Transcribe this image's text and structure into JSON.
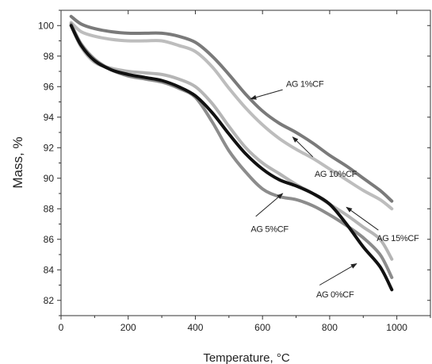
{
  "chart_data": {
    "type": "line",
    "title": "",
    "xlabel": "Temperature, °C",
    "ylabel": "Mass, %",
    "xlim": [
      0,
      1100
    ],
    "ylim": [
      81,
      101
    ],
    "xticks": [
      "0",
      "200",
      "400",
      "600",
      "800",
      "1000"
    ],
    "yticks": [
      "82",
      "84",
      "86",
      "88",
      "90",
      "92",
      "94",
      "96",
      "98",
      "100"
    ],
    "grid": false,
    "legend": "none",
    "series": [
      {
        "name": "AG 1%CF",
        "color": "#7a7a7a",
        "x": [
          30,
          60,
          100,
          150,
          200,
          250,
          300,
          350,
          400,
          450,
          500,
          550,
          600,
          650,
          700,
          750,
          800,
          850,
          900,
          950,
          985
        ],
        "y": [
          100.6,
          100.1,
          99.8,
          99.6,
          99.5,
          99.5,
          99.5,
          99.3,
          98.9,
          98.0,
          96.8,
          95.5,
          94.4,
          93.6,
          93.0,
          92.3,
          91.5,
          90.8,
          90.0,
          89.2,
          88.5
        ]
      },
      {
        "name": "AG 10%CF",
        "color": "#bdbdbd",
        "x": [
          30,
          60,
          100,
          150,
          200,
          250,
          300,
          350,
          400,
          450,
          500,
          550,
          600,
          650,
          700,
          750,
          800,
          850,
          900,
          950,
          985
        ],
        "y": [
          100.2,
          99.6,
          99.3,
          99.1,
          99.0,
          99.0,
          99.0,
          98.7,
          98.3,
          97.3,
          95.9,
          94.6,
          93.5,
          92.6,
          91.9,
          91.3,
          90.6,
          89.9,
          89.2,
          88.6,
          88.0
        ]
      },
      {
        "name": "AG 15%CF",
        "color": "#b5b5b5",
        "x": [
          30,
          60,
          100,
          150,
          200,
          250,
          300,
          350,
          400,
          450,
          500,
          550,
          600,
          650,
          700,
          750,
          800,
          850,
          900,
          950,
          985
        ],
        "y": [
          100.0,
          98.6,
          97.6,
          97.2,
          97.0,
          96.9,
          96.8,
          96.5,
          96.0,
          94.9,
          93.4,
          92.0,
          91.0,
          90.3,
          89.6,
          89.0,
          88.3,
          87.6,
          86.8,
          86.0,
          84.7
        ]
      },
      {
        "name": "AG 5%CF",
        "color": "#8c8c8c",
        "x": [
          30,
          60,
          100,
          150,
          200,
          250,
          300,
          350,
          400,
          450,
          500,
          550,
          600,
          650,
          700,
          750,
          800,
          850,
          900,
          950,
          985
        ],
        "y": [
          100.1,
          98.8,
          97.8,
          97.1,
          96.7,
          96.5,
          96.3,
          95.9,
          95.3,
          93.7,
          91.8,
          90.4,
          89.3,
          88.8,
          88.6,
          88.2,
          87.6,
          86.9,
          86.1,
          85.0,
          83.5
        ]
      },
      {
        "name": "AG 0%CF",
        "color": "#111111",
        "x": [
          30,
          60,
          100,
          150,
          200,
          250,
          300,
          350,
          400,
          450,
          500,
          550,
          600,
          650,
          700,
          750,
          800,
          850,
          900,
          950,
          985
        ],
        "y": [
          100.0,
          98.7,
          97.7,
          97.1,
          96.8,
          96.6,
          96.4,
          96.0,
          95.4,
          94.3,
          92.9,
          91.6,
          90.6,
          89.9,
          89.5,
          89.0,
          88.3,
          87.0,
          85.5,
          84.2,
          82.7
        ]
      }
    ],
    "annotations": [
      {
        "text": "AG 1%CF",
        "series": "AG 1%CF",
        "arrow_from": [
          660,
          95.8
        ],
        "arrow_to": [
          565,
          95.2
        ],
        "label_at": [
          670,
          96.2
        ]
      },
      {
        "text": "AG 10%CF",
        "series": "AG 10%CF",
        "arrow_from": [
          750,
          91.4
        ],
        "arrow_to": [
          690,
          92.7
        ],
        "label_at": [
          755,
          90.3
        ]
      },
      {
        "text": "AG 15%CF",
        "series": "AG 15%CF",
        "arrow_from": [
          945,
          86.6
        ],
        "arrow_to": [
          850,
          88.1
        ],
        "label_at": [
          940,
          86.1
        ]
      },
      {
        "text": "AG 5%CF",
        "series": "AG 5%CF",
        "arrow_from": [
          580,
          87.5
        ],
        "arrow_to": [
          660,
          89.0
        ],
        "label_at": [
          565,
          86.7
        ]
      },
      {
        "text": "AG 0%CF",
        "series": "AG 0%CF",
        "arrow_from": [
          770,
          83.0
        ],
        "arrow_to": [
          880,
          84.4
        ],
        "label_at": [
          760,
          82.4
        ]
      }
    ]
  }
}
